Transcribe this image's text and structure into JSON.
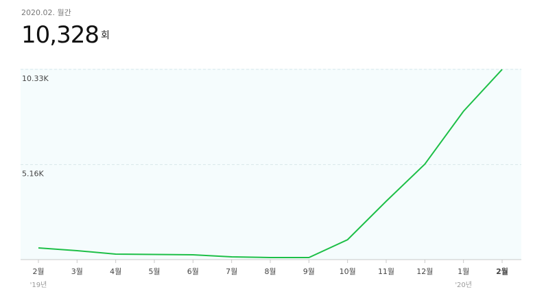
{
  "header": {
    "period": "2020.02. 월간",
    "value": "10,328",
    "unit": "회"
  },
  "chart_data": {
    "type": "line",
    "categories": [
      "2월",
      "3월",
      "4월",
      "5월",
      "6월",
      "7월",
      "8월",
      "9월",
      "10월",
      "11월",
      "12월",
      "1월",
      "2월"
    ],
    "x_sublabels": [
      "'19년",
      null,
      null,
      null,
      null,
      null,
      null,
      null,
      null,
      null,
      null,
      "'20년",
      null
    ],
    "values": [
      634,
      485,
      298,
      280,
      261,
      149,
      112,
      112,
      1081,
      3170,
      5183,
      8055,
      10328
    ],
    "color": "#1dbf47",
    "ylim": [
      0,
      10330
    ],
    "yticks": [
      {
        "value": 10330,
        "label": "10.33K"
      },
      {
        "value": 5160,
        "label": "5.16K"
      }
    ],
    "grid": true
  }
}
